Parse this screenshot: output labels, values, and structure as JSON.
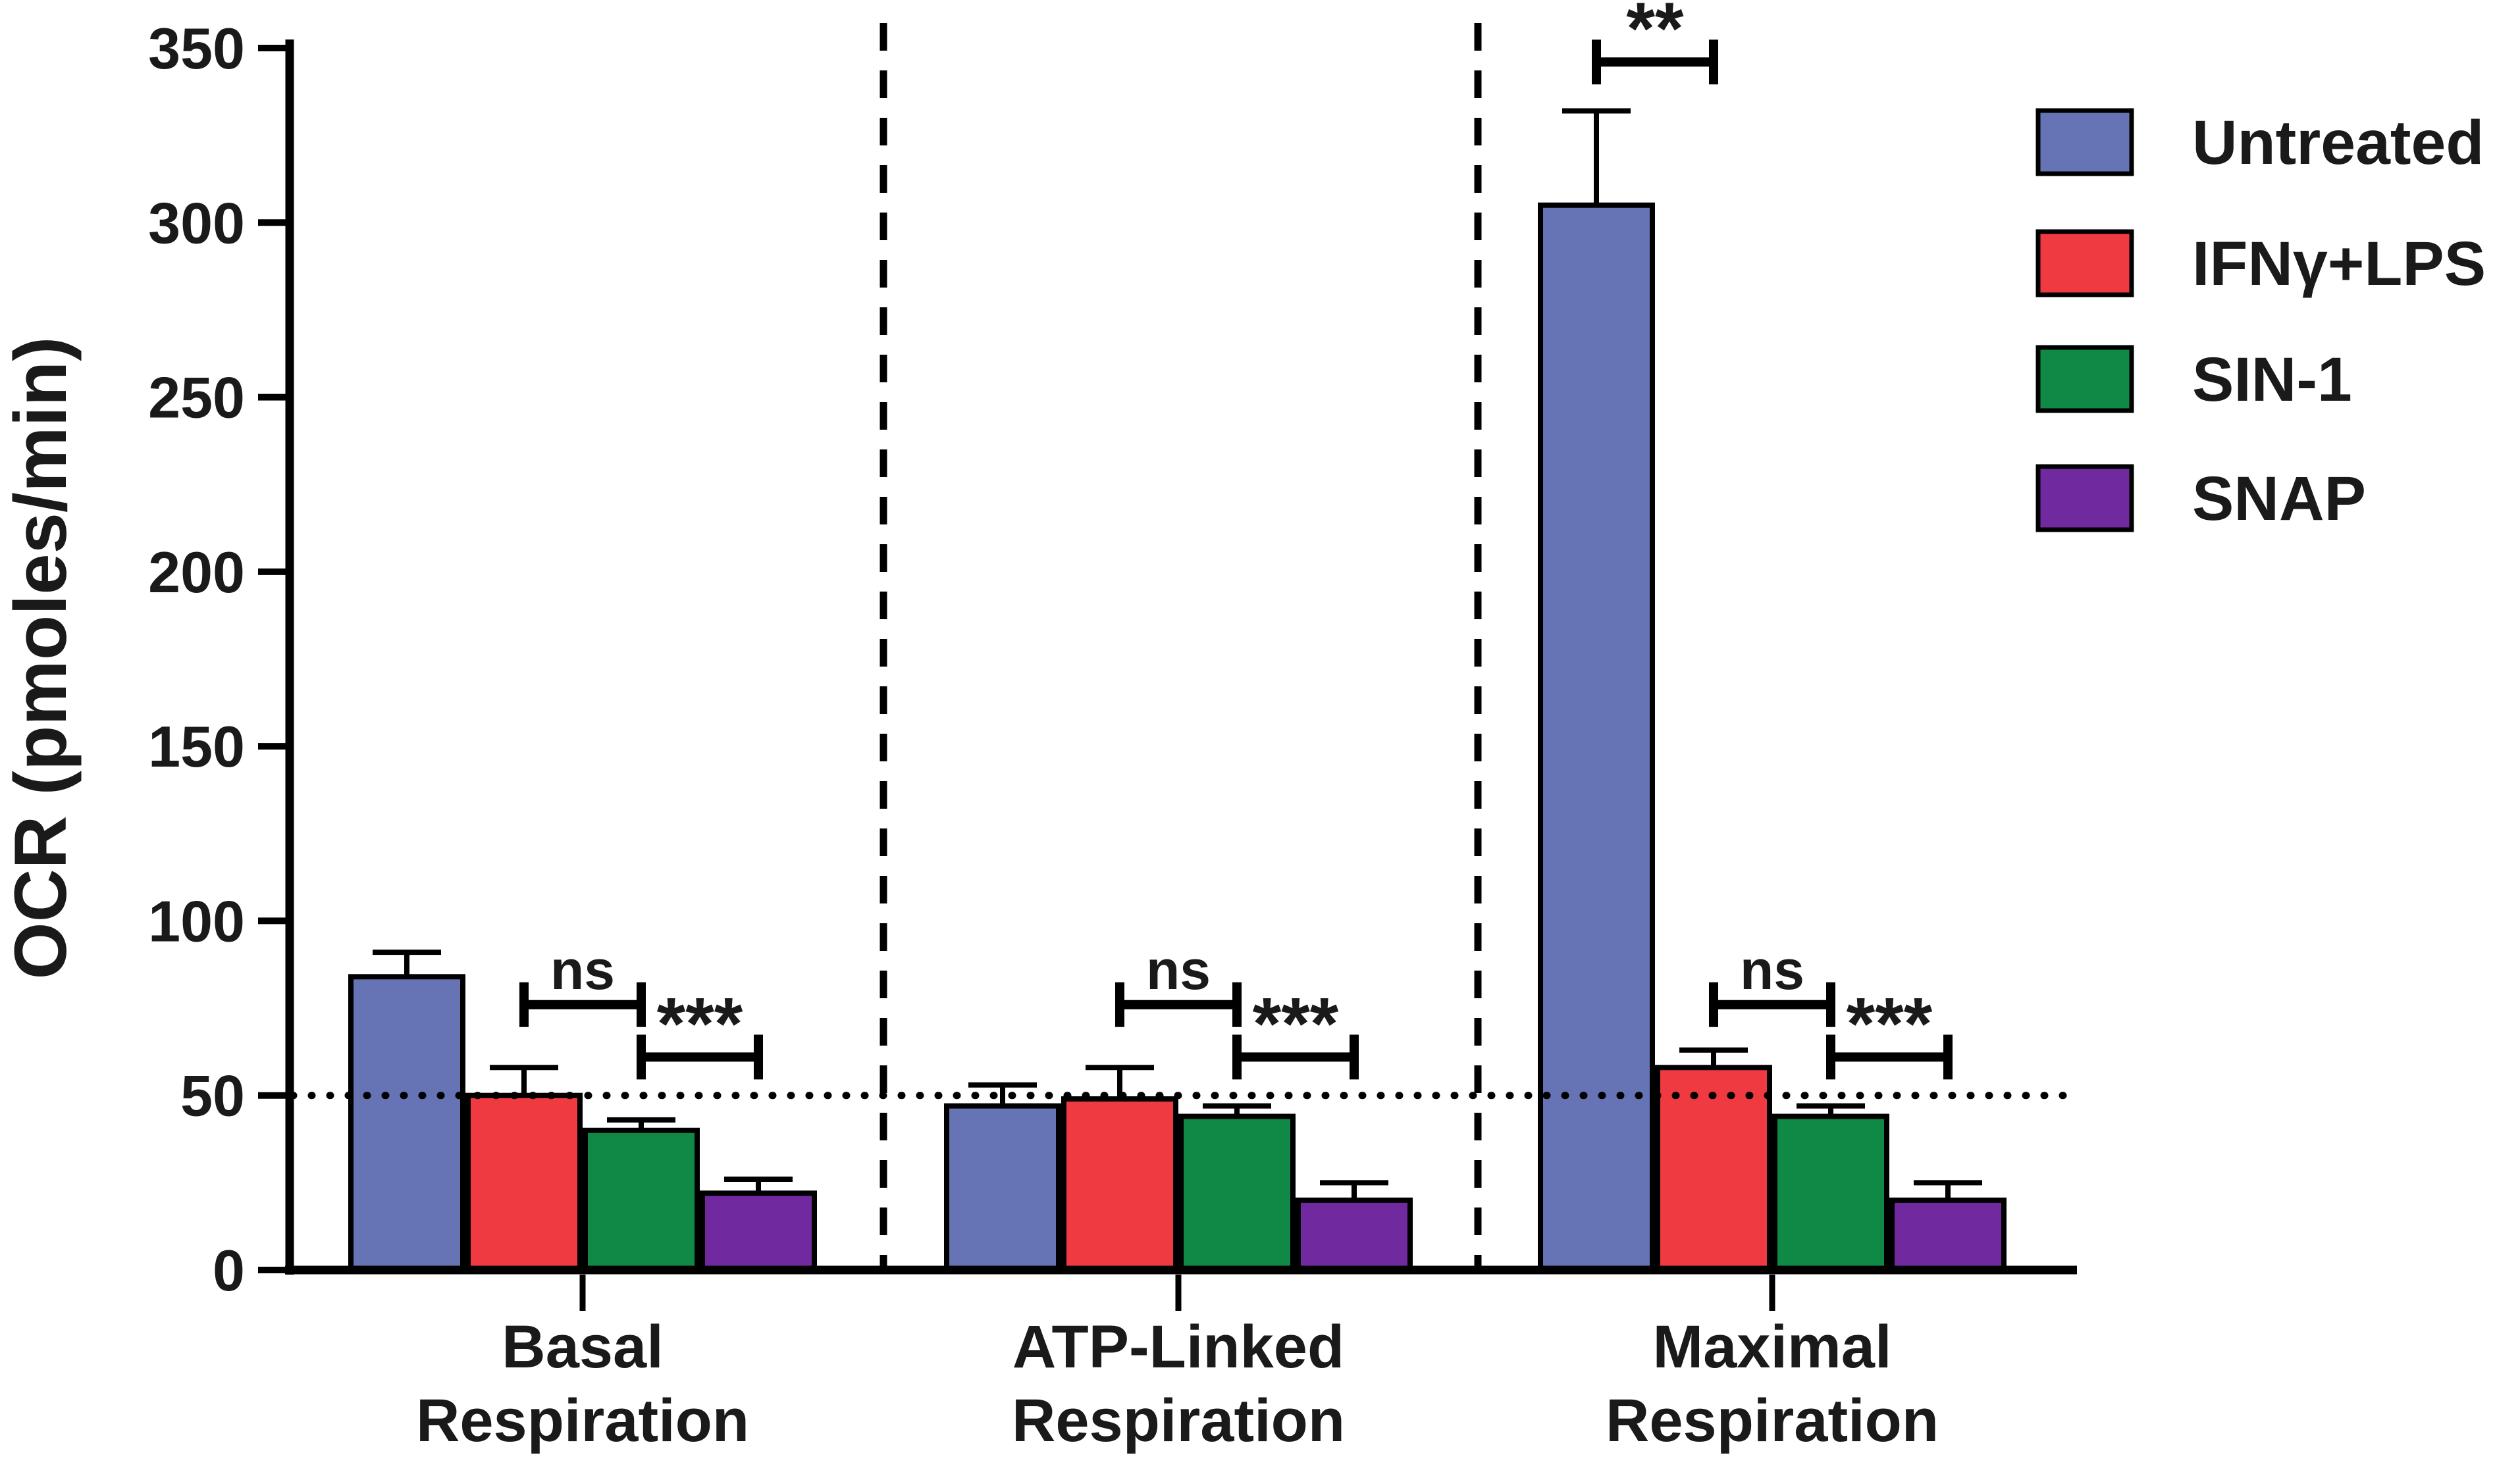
{
  "figure": {
    "background": "#ffffff",
    "axis_color": "#000000"
  },
  "y_axis": {
    "title": "OCR (pmoles/min)",
    "tick_labels": [
      "0",
      "50",
      "100",
      "150",
      "200",
      "250",
      "300",
      "350"
    ]
  },
  "legend": {
    "items": [
      {
        "label": "Untreated",
        "color": "#6673b4",
        "swatch": "untreated-swatch"
      },
      {
        "label": "IFNγ+LPS",
        "color": "#ee3a40",
        "swatch": "ifny-lps-swatch"
      },
      {
        "label": "SIN-1",
        "color": "#0f8945",
        "swatch": "sin-1-swatch"
      },
      {
        "label": "SNAP",
        "color": "#7129a0",
        "swatch": "snap-swatch"
      }
    ]
  },
  "chart_data": {
    "type": "bar",
    "title": "",
    "xlabel": "",
    "ylabel": "OCR (pmoles/min)",
    "ylim": [
      0,
      350
    ],
    "yticks": [
      0,
      50,
      100,
      150,
      200,
      250,
      300,
      350
    ],
    "grid": false,
    "legend_position": "top-right",
    "categories": [
      "Basal Respiration",
      "ATP-Linked Respiration",
      "Maximal Respiration"
    ],
    "category_lines": [
      [
        "Basal",
        "Respiration"
      ],
      [
        "ATP-Linked",
        "Respiration"
      ],
      [
        "Maximal",
        "Respiration"
      ]
    ],
    "series": [
      {
        "name": "Untreated",
        "color": "#6673b4",
        "values": [
          84,
          47,
          305
        ],
        "errors": [
          7,
          6,
          27
        ]
      },
      {
        "name": "IFNγ+LPS",
        "color": "#ee3a40",
        "values": [
          50,
          49,
          58
        ],
        "errors": [
          8,
          9,
          5
        ]
      },
      {
        "name": "SIN-1",
        "color": "#0f8945",
        "values": [
          40,
          44,
          44
        ],
        "errors": [
          3,
          3,
          3
        ]
      },
      {
        "name": "SNAP",
        "color": "#7129a0",
        "values": [
          22,
          20,
          20
        ],
        "errors": [
          4,
          5,
          5
        ]
      }
    ],
    "reference_line": {
      "y": 50,
      "style": "dotted"
    },
    "group_separators": {
      "style": "dashed",
      "between": [
        [
          "Basal Respiration",
          "ATP-Linked Respiration"
        ],
        [
          "ATP-Linked Respiration",
          "Maximal Respiration"
        ]
      ]
    },
    "annotations": [
      {
        "group_index": 0,
        "series_pair": [
          1,
          2
        ],
        "label": "ns",
        "y_value": 76
      },
      {
        "group_index": 0,
        "series_pair": [
          2,
          3
        ],
        "label": "***",
        "y_value": 61
      },
      {
        "group_index": 1,
        "series_pair": [
          1,
          2
        ],
        "label": "ns",
        "y_value": 76
      },
      {
        "group_index": 1,
        "series_pair": [
          2,
          3
        ],
        "label": "***",
        "y_value": 61
      },
      {
        "group_index": 2,
        "series_pair": [
          0,
          1
        ],
        "label": "**",
        "y_value": 346
      },
      {
        "group_index": 2,
        "series_pair": [
          1,
          2
        ],
        "label": "ns",
        "y_value": 76
      },
      {
        "group_index": 2,
        "series_pair": [
          2,
          3
        ],
        "label": "***",
        "y_value": 61
      }
    ]
  }
}
